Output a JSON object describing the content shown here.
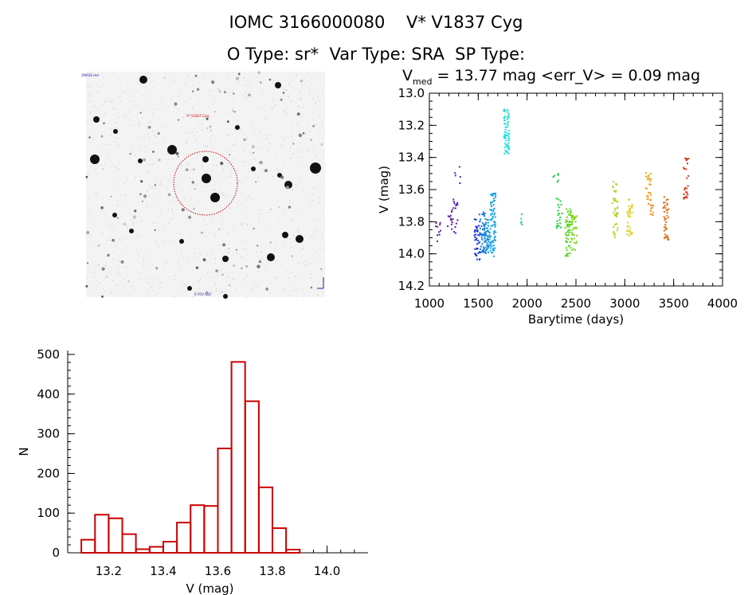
{
  "header": {
    "title": "IOMC 3166000080    V* V1837 Cyg",
    "subtitle": "O Type: sr*  Var Type: SRA  SP Type:",
    "stats_prefix": "V",
    "stats_sub": "med",
    "stats_rest": " = 13.77 mag <err_V> = 0.09 mag"
  },
  "finder": {
    "target_label": "V* V1837 Cyg",
    "tl_label": "2MASS-red",
    "bottom_label": "6 FOV 6x6'",
    "marker_color": "#cc0000"
  },
  "chart_data": [
    {
      "type": "scatter",
      "xlabel": "Barytime (days)",
      "ylabel": "V (mag)",
      "xlim": [
        1000,
        4000
      ],
      "ylim": [
        14.2,
        13.0
      ],
      "y_inverted": true,
      "xticks": [
        "1000",
        "1500",
        "2000",
        "2500",
        "3000",
        "3500",
        "4000"
      ],
      "yticks": [
        "13.0",
        "13.2",
        "13.4",
        "13.6",
        "13.8",
        "14.0",
        "14.2"
      ],
      "clusters": [
        {
          "x": 1090,
          "y_min": 13.8,
          "y_max": 13.93,
          "n": 10,
          "color": "#5a1f9a"
        },
        {
          "x": 1215,
          "y_min": 13.72,
          "y_max": 13.86,
          "n": 14,
          "color": "#5c1a9e"
        },
        {
          "x": 1260,
          "y_min": 13.66,
          "y_max": 13.9,
          "n": 14,
          "color": "#4b1eb8"
        },
        {
          "x": 1290,
          "y_min": 13.44,
          "y_max": 13.62,
          "n": 5,
          "color": "#3a2ac6"
        },
        {
          "x": 1490,
          "y_min": 13.78,
          "y_max": 14.04,
          "n": 40,
          "color": "#1a35d6"
        },
        {
          "x": 1540,
          "y_min": 13.74,
          "y_max": 14.0,
          "n": 40,
          "color": "#1570dd"
        },
        {
          "x": 1590,
          "y_min": 13.78,
          "y_max": 14.0,
          "n": 55,
          "color": "#1890e4"
        },
        {
          "x": 1650,
          "y_min": 13.62,
          "y_max": 14.02,
          "n": 80,
          "color": "#18a8e4"
        },
        {
          "x": 1790,
          "y_min": 13.1,
          "y_max": 13.38,
          "n": 70,
          "color": "#22e0d6"
        },
        {
          "x": 1960,
          "y_min": 13.75,
          "y_max": 13.83,
          "n": 5,
          "color": "#22d080"
        },
        {
          "x": 2290,
          "y_min": 13.46,
          "y_max": 13.58,
          "n": 6,
          "color": "#18cc44"
        },
        {
          "x": 2330,
          "y_min": 13.64,
          "y_max": 13.84,
          "n": 20,
          "color": "#1ad030"
        },
        {
          "x": 2420,
          "y_min": 13.72,
          "y_max": 14.02,
          "n": 55,
          "color": "#5ad820"
        },
        {
          "x": 2480,
          "y_min": 13.76,
          "y_max": 13.98,
          "n": 35,
          "color": "#7ad818"
        },
        {
          "x": 2900,
          "y_min": 13.55,
          "y_max": 13.9,
          "n": 40,
          "color": "#b0d41a"
        },
        {
          "x": 3050,
          "y_min": 13.66,
          "y_max": 13.9,
          "n": 35,
          "color": "#e0d020"
        },
        {
          "x": 3240,
          "y_min": 13.48,
          "y_max": 13.68,
          "n": 25,
          "color": "#f0a018"
        },
        {
          "x": 3270,
          "y_min": 13.68,
          "y_max": 13.76,
          "n": 10,
          "color": "#e88818"
        },
        {
          "x": 3420,
          "y_min": 13.62,
          "y_max": 13.92,
          "n": 40,
          "color": "#e07018"
        },
        {
          "x": 3630,
          "y_min": 13.4,
          "y_max": 13.66,
          "n": 25,
          "color": "#d03418"
        }
      ]
    },
    {
      "type": "bar",
      "subtype": "histogram",
      "xlabel": "V (mag)",
      "ylabel": "N",
      "xlim": [
        13.05,
        14.15
      ],
      "ylim": [
        0,
        510
      ],
      "xticks": [
        "13.2",
        "13.4",
        "13.6",
        "13.8",
        "14.0"
      ],
      "yticks": [
        "0",
        "100",
        "200",
        "300",
        "400",
        "500"
      ],
      "bin_width": 0.05,
      "bin_start": 13.1,
      "values": [
        33,
        96,
        87,
        47,
        9,
        15,
        28,
        76,
        120,
        118,
        263,
        481,
        382,
        165,
        62,
        8
      ],
      "color": "#cc0000"
    }
  ]
}
